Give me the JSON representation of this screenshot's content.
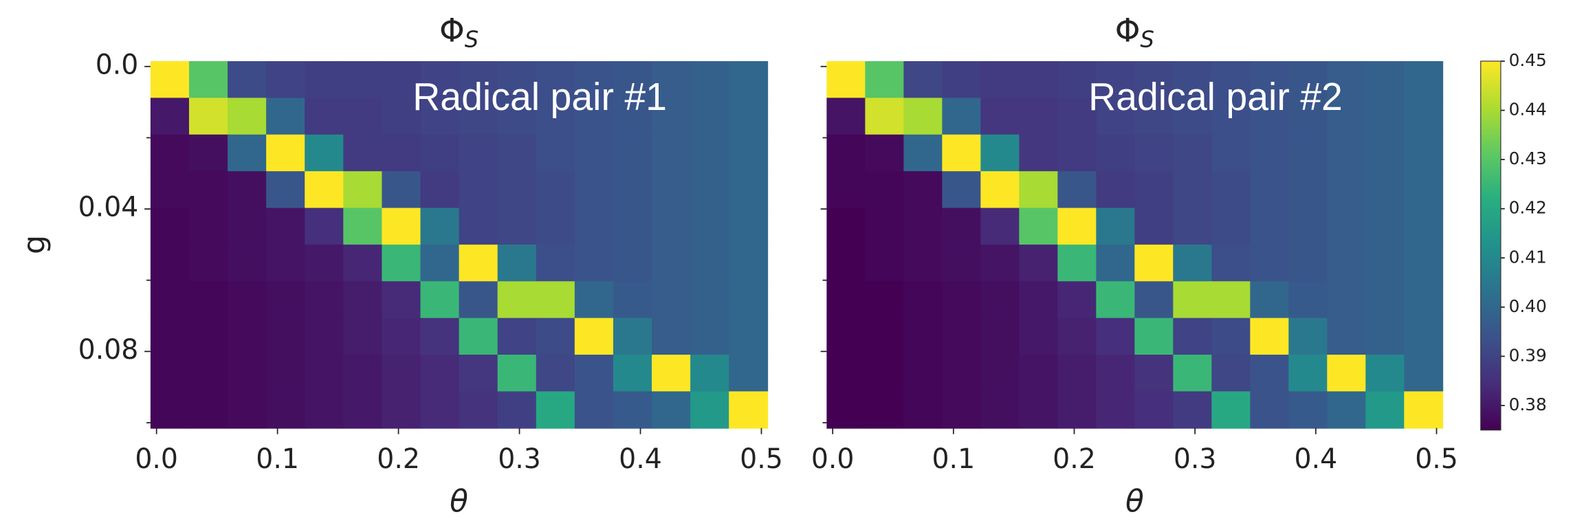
{
  "chart_data": [
    {
      "type": "heatmap",
      "title": "Φ",
      "title_subscript": "S",
      "annotation": "Radical pair #1",
      "xlabel": "θ",
      "ylabel": "g",
      "xlim": [
        -0.005,
        0.505
      ],
      "ylim": [
        -0.0015,
        0.1015
      ],
      "y_inverted": true,
      "xticks": [
        {
          "value": 0,
          "label": "0.0"
        },
        0.1,
        0.2,
        0.3,
        0.4,
        0.5
      ],
      "yticks": [
        {
          "value": 0,
          "label": "0.0"
        },
        0.04,
        0.08
      ],
      "yminorticks": [
        0.02,
        0.06,
        0.1
      ],
      "show_ytick_labels": true,
      "z": [
        [
          0.45,
          0.43,
          0.392,
          0.39,
          0.389,
          0.389,
          0.389,
          0.39,
          0.391,
          0.392,
          0.393,
          0.394,
          0.395,
          0.397,
          0.398,
          0.4
        ],
        [
          0.38,
          0.445,
          0.44,
          0.4,
          0.388,
          0.388,
          0.389,
          0.39,
          0.391,
          0.392,
          0.393,
          0.394,
          0.395,
          0.397,
          0.398,
          0.4
        ],
        [
          0.377,
          0.378,
          0.4,
          0.45,
          0.41,
          0.388,
          0.388,
          0.389,
          0.39,
          0.391,
          0.393,
          0.394,
          0.395,
          0.397,
          0.398,
          0.4
        ],
        [
          0.377,
          0.377,
          0.378,
          0.395,
          0.45,
          0.44,
          0.395,
          0.388,
          0.39,
          0.391,
          0.392,
          0.394,
          0.395,
          0.397,
          0.398,
          0.4
        ],
        [
          0.376,
          0.377,
          0.378,
          0.379,
          0.385,
          0.43,
          0.45,
          0.405,
          0.39,
          0.391,
          0.392,
          0.394,
          0.395,
          0.397,
          0.398,
          0.4
        ],
        [
          0.376,
          0.377,
          0.378,
          0.379,
          0.38,
          0.383,
          0.425,
          0.4,
          0.45,
          0.405,
          0.393,
          0.394,
          0.395,
          0.397,
          0.398,
          0.4
        ],
        [
          0.376,
          0.376,
          0.377,
          0.378,
          0.379,
          0.381,
          0.384,
          0.425,
          0.395,
          0.44,
          0.44,
          0.4,
          0.396,
          0.397,
          0.398,
          0.4
        ],
        [
          0.376,
          0.376,
          0.377,
          0.378,
          0.379,
          0.381,
          0.383,
          0.386,
          0.425,
          0.39,
          0.392,
          0.45,
          0.405,
          0.397,
          0.398,
          0.4
        ],
        [
          0.376,
          0.376,
          0.377,
          0.378,
          0.379,
          0.38,
          0.382,
          0.384,
          0.387,
          0.425,
          0.391,
          0.394,
          0.41,
          0.45,
          0.41,
          0.4
        ],
        [
          0.376,
          0.376,
          0.377,
          0.378,
          0.379,
          0.38,
          0.382,
          0.384,
          0.386,
          0.389,
          0.42,
          0.394,
          0.396,
          0.4,
          0.415,
          0.45
        ]
      ]
    },
    {
      "type": "heatmap",
      "title": "Φ",
      "title_subscript": "S",
      "annotation": "Radical pair #2",
      "xlabel": "θ",
      "xlim": [
        -0.005,
        0.505
      ],
      "ylim": [
        -0.0015,
        0.1015
      ],
      "y_inverted": true,
      "xticks": [
        {
          "value": 0,
          "label": "0.0"
        },
        0.1,
        0.2,
        0.3,
        0.4,
        0.5
      ],
      "yticks": [
        0,
        0.04,
        0.08
      ],
      "yminorticks": [
        0.02,
        0.06,
        0.1
      ],
      "show_ytick_labels": false,
      "z": [
        [
          0.45,
          0.43,
          0.391,
          0.389,
          0.388,
          0.388,
          0.389,
          0.39,
          0.391,
          0.392,
          0.393,
          0.394,
          0.395,
          0.397,
          0.398,
          0.4
        ],
        [
          0.379,
          0.445,
          0.44,
          0.4,
          0.387,
          0.387,
          0.388,
          0.39,
          0.391,
          0.392,
          0.393,
          0.394,
          0.395,
          0.397,
          0.398,
          0.4
        ],
        [
          0.376,
          0.377,
          0.4,
          0.45,
          0.41,
          0.387,
          0.388,
          0.389,
          0.39,
          0.391,
          0.393,
          0.394,
          0.395,
          0.397,
          0.398,
          0.4
        ],
        [
          0.376,
          0.376,
          0.377,
          0.395,
          0.45,
          0.44,
          0.395,
          0.388,
          0.389,
          0.391,
          0.392,
          0.394,
          0.395,
          0.397,
          0.398,
          0.4
        ],
        [
          0.375,
          0.376,
          0.377,
          0.378,
          0.384,
          0.43,
          0.45,
          0.405,
          0.389,
          0.391,
          0.392,
          0.394,
          0.395,
          0.397,
          0.398,
          0.4
        ],
        [
          0.375,
          0.376,
          0.377,
          0.378,
          0.379,
          0.382,
          0.425,
          0.4,
          0.45,
          0.405,
          0.393,
          0.394,
          0.395,
          0.397,
          0.398,
          0.4
        ],
        [
          0.375,
          0.375,
          0.376,
          0.377,
          0.378,
          0.38,
          0.383,
          0.425,
          0.395,
          0.44,
          0.44,
          0.4,
          0.396,
          0.397,
          0.398,
          0.4
        ],
        [
          0.375,
          0.375,
          0.376,
          0.377,
          0.378,
          0.38,
          0.382,
          0.385,
          0.425,
          0.39,
          0.392,
          0.45,
          0.405,
          0.397,
          0.398,
          0.4
        ],
        [
          0.375,
          0.375,
          0.376,
          0.377,
          0.378,
          0.379,
          0.381,
          0.383,
          0.386,
          0.425,
          0.391,
          0.394,
          0.41,
          0.45,
          0.41,
          0.4
        ],
        [
          0.375,
          0.375,
          0.376,
          0.377,
          0.378,
          0.379,
          0.381,
          0.383,
          0.385,
          0.388,
          0.42,
          0.394,
          0.396,
          0.4,
          0.415,
          0.45
        ]
      ]
    },
    {
      "type": "colorbar",
      "colormap": "viridis",
      "clim": [
        0.375,
        0.45
      ],
      "ticks": [
        0.38,
        0.39,
        {
          "value": 0.4,
          "label": "0.40"
        },
        0.41,
        0.42,
        0.43,
        0.44,
        0.45
      ]
    }
  ]
}
